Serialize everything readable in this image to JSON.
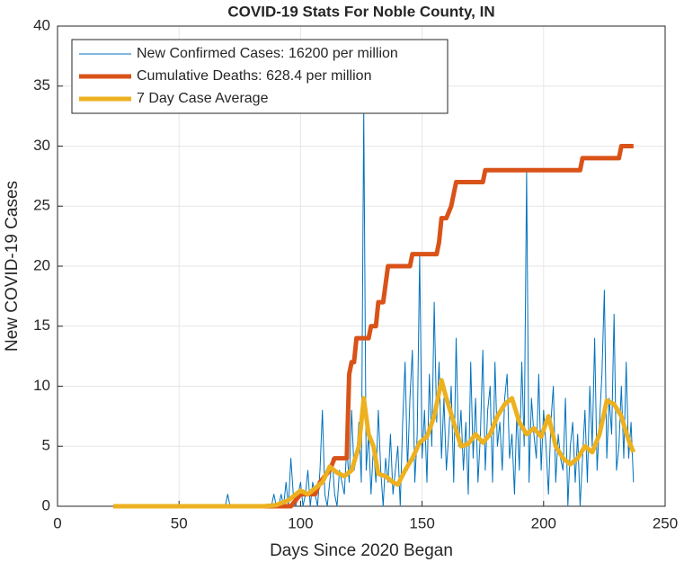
{
  "chart_data": {
    "type": "line",
    "title": "COVID-19 Stats For Noble County, IN",
    "xlabel": "Days Since 2020 Began",
    "ylabel": "New COVID-19 Cases",
    "xlim": [
      0,
      250
    ],
    "xticks": [
      0,
      50,
      100,
      150,
      200,
      250
    ],
    "ylim": [
      0,
      40
    ],
    "yticks": [
      0,
      5,
      10,
      15,
      20,
      25,
      30,
      35,
      40
    ],
    "grid": true,
    "legend": "upper left",
    "series": [
      {
        "name": "New Confirmed Cases: 16200 per million",
        "color": "#0072bd",
        "width": 1,
        "x": [
          23,
          69,
          70,
          71,
          87,
          88,
          89,
          90,
          91,
          92,
          93,
          94,
          95,
          96,
          97,
          98,
          99,
          100,
          101,
          102,
          103,
          104,
          105,
          106,
          107,
          108,
          109,
          110,
          111,
          112,
          113,
          114,
          115,
          116,
          117,
          118,
          119,
          120,
          121,
          122,
          123,
          124,
          125,
          126,
          127,
          128,
          129,
          130,
          131,
          132,
          133,
          134,
          135,
          136,
          137,
          138,
          139,
          140,
          141,
          142,
          143,
          144,
          145,
          146,
          147,
          148,
          149,
          150,
          151,
          152,
          153,
          154,
          155,
          156,
          157,
          158,
          159,
          160,
          161,
          162,
          163,
          164,
          165,
          166,
          167,
          168,
          169,
          170,
          171,
          172,
          173,
          174,
          175,
          176,
          177,
          178,
          179,
          180,
          181,
          182,
          183,
          184,
          185,
          186,
          187,
          188,
          189,
          190,
          191,
          192,
          193,
          194,
          195,
          196,
          197,
          198,
          199,
          200,
          201,
          202,
          203,
          204,
          205,
          206,
          207,
          208,
          209,
          210,
          211,
          212,
          213,
          214,
          215,
          216,
          217,
          218,
          219,
          220,
          221,
          222,
          223,
          224,
          225,
          226,
          227,
          228,
          229,
          230,
          231,
          232,
          233,
          234,
          235,
          236,
          237
        ],
        "values": [
          0,
          0,
          1,
          0,
          0,
          0,
          1,
          0,
          0,
          1,
          0,
          2,
          0,
          4,
          1,
          0,
          1,
          2,
          0,
          1,
          3,
          0,
          2,
          1,
          0,
          3,
          8,
          1,
          0,
          2,
          4,
          1,
          0,
          3,
          2,
          1,
          5,
          2,
          8,
          3,
          4,
          7,
          2,
          33,
          3,
          6,
          1,
          5,
          2,
          8,
          3,
          0,
          4,
          2,
          6,
          1,
          3,
          5,
          0,
          7,
          12,
          3,
          9,
          13,
          2,
          6,
          21,
          4,
          8,
          2,
          11,
          5,
          17,
          7,
          12,
          4,
          9,
          3,
          6,
          10,
          2,
          14,
          5,
          8,
          3,
          7,
          1,
          12,
          4,
          9,
          2,
          6,
          13,
          3,
          8,
          10,
          2,
          12,
          5,
          7,
          3,
          9,
          11,
          4,
          6,
          1,
          8,
          3,
          12,
          5,
          28,
          2,
          9,
          6,
          4,
          11,
          3,
          8,
          5,
          1,
          7,
          10,
          2,
          6,
          4,
          3,
          9,
          0,
          5,
          7,
          2,
          6,
          0,
          4,
          8,
          2,
          10,
          5,
          14,
          3,
          7,
          11,
          18,
          4,
          9,
          6,
          16,
          3,
          5,
          10,
          4,
          12,
          4,
          7,
          2
        ]
      },
      {
        "name": "Cumulative Deaths: 628.4 per million",
        "color": "#d95319",
        "width": 5,
        "x": [
          23,
          96,
          100,
          106,
          108,
          112,
          114,
          119,
          120,
          121,
          122,
          123,
          128,
          129,
          131,
          132,
          134,
          136,
          145,
          146,
          156,
          157,
          158,
          160,
          162,
          164,
          175,
          176,
          215,
          216,
          231,
          232,
          237
        ],
        "values": [
          0,
          0,
          1,
          1,
          2,
          3,
          4,
          4,
          11,
          12,
          12,
          14,
          14,
          15,
          15,
          17,
          17,
          20,
          20,
          21,
          21,
          22,
          24,
          24,
          25,
          27,
          27,
          28,
          28,
          29,
          29,
          30,
          30
        ]
      },
      {
        "name": "7 Day Case Average",
        "color": "#edb120",
        "width": 5,
        "x": [
          23,
          70,
          85,
          90,
          95,
          100,
          103,
          106,
          109,
          112,
          115,
          118,
          121,
          124,
          126,
          128,
          130,
          132,
          135,
          138,
          140,
          143,
          146,
          149,
          152,
          155,
          158,
          160,
          163,
          166,
          169,
          172,
          175,
          178,
          181,
          184,
          187,
          190,
          193,
          196,
          199,
          202,
          205,
          208,
          211,
          214,
          217,
          220,
          223,
          226,
          229,
          232,
          235,
          237
        ],
        "values": [
          0,
          0,
          0,
          0.1,
          0.5,
          1.3,
          1,
          1.5,
          2,
          3.3,
          2.8,
          2.5,
          3,
          5,
          9,
          6,
          5,
          2.7,
          2.5,
          2,
          1.8,
          3,
          4,
          5.3,
          5.8,
          7.5,
          10.5,
          9,
          7,
          5,
          5.2,
          6,
          5.3,
          6,
          7.5,
          8.5,
          9,
          7,
          6,
          6.5,
          5.8,
          7.5,
          5,
          4,
          3.5,
          4,
          5,
          4.5,
          6,
          8.8,
          8.5,
          7.5,
          5.5,
          4.5
        ]
      }
    ]
  }
}
